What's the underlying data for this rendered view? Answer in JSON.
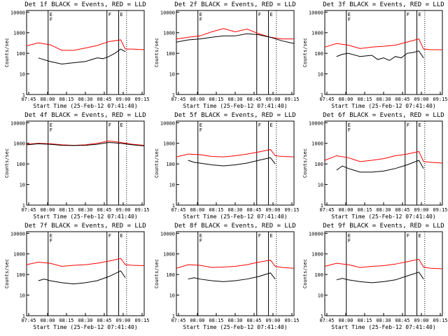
{
  "figure": {
    "common": {
      "ylabel": "Counts/sec",
      "xlabel": "Start Time (25-Feb-12 07:41:40)",
      "x_ticks": [
        "07:45",
        "08:00",
        "08:15",
        "08:30",
        "08:45",
        "09:00",
        "09:15"
      ],
      "y_ticks": [
        "1",
        "10",
        "100",
        "1000",
        "10000"
      ]
    }
  },
  "chart_data": [
    {
      "type": "line",
      "title": "Det 1f BLACK = Events, RED = LLD",
      "x_units": "minutes since 07:41:40",
      "xlim": [
        0,
        100
      ],
      "ylim": [
        1,
        12000
      ],
      "y_scale": "log",
      "series": [
        {
          "color": "#ff0000",
          "x": [
            0,
            10,
            20,
            30,
            40,
            50,
            60,
            70,
            80,
            84,
            90,
            100
          ],
          "values": [
            230,
            320,
            260,
            140,
            140,
            180,
            240,
            370,
            450,
            160,
            160,
            150
          ]
        },
        {
          "color": "#000000",
          "x": [
            10,
            12,
            20,
            30,
            40,
            50,
            60,
            65,
            70,
            75,
            80,
            84
          ],
          "values": [
            60,
            55,
            40,
            30,
            35,
            40,
            60,
            55,
            70,
            100,
            160,
            120
          ]
        }
      ],
      "markers": [
        {
          "x": 18.3,
          "labels": [
            "E",
            "F"
          ]
        },
        {
          "x": 68.3,
          "labels": [
            "F"
          ]
        },
        {
          "x": 78.3,
          "labels": [
            "E"
          ]
        }
      ],
      "dotted_x": [
        85
      ]
    },
    {
      "type": "line",
      "title": "Det 2f BLACK = Events, RED = LLD",
      "x_units": "minutes since 07:41:40",
      "xlim": [
        0,
        100
      ],
      "ylim": [
        1,
        12000
      ],
      "y_scale": "log",
      "series": [
        {
          "color": "#ff0000",
          "x": [
            0,
            10,
            20,
            30,
            40,
            50,
            60,
            70,
            80,
            90,
            100
          ],
          "values": [
            500,
            600,
            700,
            1100,
            1600,
            1100,
            1500,
            900,
            600,
            500,
            500
          ]
        },
        {
          "color": "#000000",
          "x": [
            0,
            10,
            20,
            30,
            40,
            50,
            60,
            70,
            80,
            90,
            100
          ],
          "values": [
            350,
            450,
            500,
            600,
            700,
            700,
            900,
            800,
            600,
            400,
            300
          ]
        }
      ],
      "markers": [
        {
          "x": 18.3,
          "labels": [
            "E",
            "F"
          ]
        },
        {
          "x": 68.3,
          "labels": [
            "F"
          ]
        },
        {
          "x": 78.3,
          "labels": [
            "E"
          ]
        }
      ],
      "dotted_x": [
        85
      ]
    },
    {
      "type": "line",
      "title": "Det 3f BLACK = Events, RED = LLD",
      "x_units": "minutes since 07:41:40",
      "xlim": [
        0,
        100
      ],
      "ylim": [
        1,
        12000
      ],
      "y_scale": "log",
      "series": [
        {
          "color": "#ff0000",
          "x": [
            0,
            10,
            20,
            30,
            40,
            50,
            60,
            70,
            80,
            84,
            90,
            100
          ],
          "values": [
            200,
            300,
            250,
            170,
            200,
            220,
            250,
            350,
            500,
            160,
            150,
            150
          ]
        },
        {
          "color": "#000000",
          "x": [
            10,
            15,
            20,
            30,
            40,
            45,
            50,
            55,
            60,
            65,
            70,
            75,
            80,
            84
          ],
          "values": [
            70,
            90,
            100,
            70,
            80,
            50,
            60,
            45,
            70,
            60,
            100,
            110,
            130,
            60
          ]
        }
      ],
      "markers": [
        {
          "x": 18.3,
          "labels": [
            "E",
            "F"
          ]
        },
        {
          "x": 68.3,
          "labels": [
            "F"
          ]
        },
        {
          "x": 78.3,
          "labels": [
            "E"
          ]
        }
      ],
      "dotted_x": [
        85
      ]
    },
    {
      "type": "line",
      "title": "Det 4f BLACK = Events, RED = LLD",
      "x_units": "minutes since 07:41:40",
      "xlim": [
        0,
        100
      ],
      "ylim": [
        1,
        12000
      ],
      "y_scale": "log",
      "series": [
        {
          "color": "#ff0000",
          "x": [
            0,
            10,
            20,
            30,
            40,
            50,
            60,
            70,
            80,
            90,
            100
          ],
          "values": [
            900,
            1000,
            950,
            850,
            800,
            850,
            1000,
            1300,
            1100,
            900,
            800
          ]
        },
        {
          "color": "#000000",
          "x": [
            0,
            10,
            20,
            30,
            40,
            50,
            60,
            70,
            80,
            90,
            100
          ],
          "values": [
            850,
            950,
            900,
            800,
            780,
            800,
            900,
            1100,
            1000,
            850,
            750
          ]
        }
      ],
      "markers": [
        {
          "x": 18.3,
          "labels": [
            "E",
            "F"
          ]
        },
        {
          "x": 68.3,
          "labels": [
            "F"
          ]
        },
        {
          "x": 78.3,
          "labels": [
            "E"
          ]
        }
      ],
      "dotted_x": [
        85
      ]
    },
    {
      "type": "line",
      "title": "Det 5f BLACK = Events, RED = LLD",
      "x_units": "minutes since 07:41:40",
      "xlim": [
        0,
        100
      ],
      "ylim": [
        1,
        12000
      ],
      "y_scale": "log",
      "series": [
        {
          "color": "#ff0000",
          "x": [
            0,
            10,
            20,
            30,
            40,
            50,
            60,
            70,
            80,
            84,
            90,
            100
          ],
          "values": [
            220,
            300,
            280,
            230,
            220,
            250,
            300,
            380,
            500,
            250,
            230,
            220
          ]
        },
        {
          "color": "#000000",
          "x": [
            10,
            15,
            20,
            30,
            40,
            50,
            60,
            70,
            80,
            84
          ],
          "values": [
            150,
            120,
            110,
            90,
            80,
            90,
            110,
            150,
            200,
            100
          ]
        }
      ],
      "markers": [
        {
          "x": 18.3,
          "labels": [
            "E",
            "F"
          ]
        },
        {
          "x": 68.3,
          "labels": [
            "F"
          ]
        },
        {
          "x": 78.3,
          "labels": [
            "E"
          ]
        }
      ],
      "dotted_x": [
        85
      ]
    },
    {
      "type": "line",
      "title": "Det 6f BLACK = Events, RED = LLD",
      "x_units": "minutes since 07:41:40",
      "xlim": [
        0,
        100
      ],
      "ylim": [
        1,
        12000
      ],
      "y_scale": "log",
      "series": [
        {
          "color": "#ff0000",
          "x": [
            0,
            10,
            20,
            30,
            40,
            50,
            60,
            70,
            80,
            84,
            90,
            100
          ],
          "values": [
            150,
            250,
            200,
            130,
            150,
            180,
            250,
            300,
            400,
            130,
            120,
            110
          ]
        },
        {
          "color": "#000000",
          "x": [
            10,
            15,
            20,
            30,
            40,
            50,
            60,
            70,
            80,
            84
          ],
          "values": [
            50,
            80,
            60,
            40,
            40,
            45,
            60,
            90,
            150,
            60
          ]
        }
      ],
      "markers": [
        {
          "x": 18.3,
          "labels": [
            "E",
            "F"
          ]
        },
        {
          "x": 68.3,
          "labels": [
            "F"
          ]
        },
        {
          "x": 78.3,
          "labels": [
            "E"
          ]
        }
      ],
      "dotted_x": [
        85
      ]
    },
    {
      "type": "line",
      "title": "Det 7f BLACK = Events, RED = LLD",
      "x_units": "minutes since 07:41:40",
      "xlim": [
        0,
        100
      ],
      "ylim": [
        1,
        12000
      ],
      "y_scale": "log",
      "series": [
        {
          "color": "#ff0000",
          "x": [
            0,
            10,
            20,
            30,
            40,
            50,
            60,
            70,
            80,
            84,
            90,
            100
          ],
          "values": [
            300,
            400,
            350,
            250,
            280,
            300,
            350,
            450,
            600,
            300,
            280,
            270
          ]
        },
        {
          "color": "#000000",
          "x": [
            10,
            15,
            20,
            30,
            40,
            50,
            60,
            70,
            80,
            84
          ],
          "values": [
            50,
            60,
            50,
            40,
            35,
            40,
            50,
            80,
            150,
            70
          ]
        }
      ],
      "markers": [
        {
          "x": 18.3,
          "labels": [
            "E",
            "F"
          ]
        },
        {
          "x": 68.3,
          "labels": [
            "F"
          ]
        },
        {
          "x": 78.3,
          "labels": [
            "E"
          ]
        }
      ],
      "dotted_x": [
        85
      ]
    },
    {
      "type": "line",
      "title": "Det 8f BLACK = Events, RED = LLD",
      "x_units": "minutes since 07:41:40",
      "xlim": [
        0,
        100
      ],
      "ylim": [
        1,
        12000
      ],
      "y_scale": "log",
      "series": [
        {
          "color": "#ff0000",
          "x": [
            0,
            10,
            20,
            30,
            40,
            50,
            60,
            70,
            80,
            84,
            90,
            100
          ],
          "values": [
            200,
            300,
            280,
            220,
            230,
            250,
            300,
            400,
            500,
            250,
            220,
            200
          ]
        },
        {
          "color": "#000000",
          "x": [
            10,
            15,
            20,
            30,
            40,
            50,
            60,
            70,
            80,
            84
          ],
          "values": [
            60,
            70,
            60,
            50,
            45,
            50,
            60,
            80,
            120,
            60
          ]
        }
      ],
      "markers": [
        {
          "x": 18.3,
          "labels": [
            "E",
            "F"
          ]
        },
        {
          "x": 68.3,
          "labels": [
            "F"
          ]
        },
        {
          "x": 78.3,
          "labels": [
            "E"
          ]
        }
      ],
      "dotted_x": [
        85
      ]
    },
    {
      "type": "line",
      "title": "Det 9f BLACK = Events, RED = LLD",
      "x_units": "minutes since 07:41:40",
      "xlim": [
        0,
        100
      ],
      "ylim": [
        1,
        12000
      ],
      "y_scale": "log",
      "series": [
        {
          "color": "#ff0000",
          "x": [
            0,
            10,
            20,
            30,
            40,
            50,
            60,
            70,
            80,
            84,
            90,
            100
          ],
          "values": [
            250,
            350,
            300,
            220,
            250,
            270,
            320,
            420,
            550,
            230,
            200,
            190
          ]
        },
        {
          "color": "#000000",
          "x": [
            10,
            15,
            20,
            30,
            40,
            50,
            60,
            70,
            80,
            84
          ],
          "values": [
            55,
            65,
            55,
            45,
            40,
            45,
            55,
            85,
            130,
            60
          ]
        }
      ],
      "markers": [
        {
          "x": 18.3,
          "labels": [
            "E",
            "F"
          ]
        },
        {
          "x": 68.3,
          "labels": [
            "F"
          ]
        },
        {
          "x": 78.3,
          "labels": [
            "E"
          ]
        }
      ],
      "dotted_x": [
        85
      ]
    }
  ]
}
